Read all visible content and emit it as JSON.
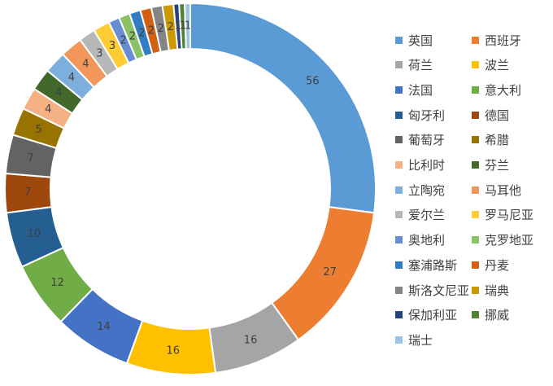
{
  "chart_data": {
    "type": "pie",
    "style": "donut",
    "legend_position": "right",
    "categories": [
      "英国",
      "西班牙",
      "荷兰",
      "波兰",
      "法国",
      "意大利",
      "匈牙利",
      "德国",
      "葡萄牙",
      "希腊",
      "比利时",
      "芬兰",
      "立陶宛",
      "马耳他",
      "爱尔兰",
      "罗马尼亚",
      "奥地利",
      "克罗地亚",
      "塞浦路斯",
      "丹麦",
      "斯洛文尼亚",
      "瑞典",
      "保加利亚",
      "挪威",
      "瑞士"
    ],
    "values": [
      56,
      27,
      16,
      16,
      14,
      12,
      10,
      7,
      7,
      5,
      4,
      4,
      4,
      4,
      3,
      3,
      2,
      2,
      2,
      2,
      2,
      2,
      1,
      1,
      1
    ],
    "data_labels": [
      "56",
      "27",
      "16",
      "16",
      "14",
      "12",
      "10",
      "7",
      "7",
      "5",
      "4",
      "4",
      "4",
      "4",
      "3",
      "3",
      "2",
      "2",
      "2",
      "2",
      "2",
      "2",
      "1",
      "1",
      "1"
    ],
    "colors": [
      "#5B9BD5",
      "#ED7D31",
      "#A5A5A5",
      "#FFC000",
      "#4472C4",
      "#70AD47",
      "#255E91",
      "#9E480E",
      "#636363",
      "#997300",
      "#F4B183",
      "#43682B",
      "#7CAFDD",
      "#F1975A",
      "#B7B7B7",
      "#FFCD33",
      "#698ED0",
      "#8CC168",
      "#327DC2",
      "#D26012",
      "#848484",
      "#CC9A00",
      "#264478",
      "#548235",
      "#9DC3E6"
    ]
  }
}
